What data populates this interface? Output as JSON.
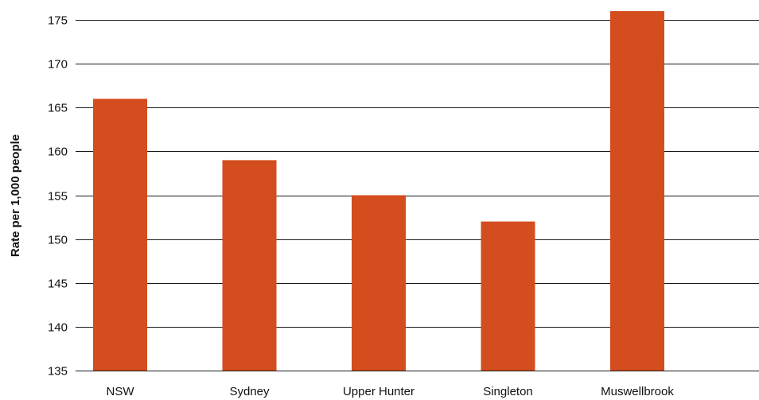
{
  "chart_data": {
    "type": "bar",
    "categories": [
      "NSW",
      "Sydney",
      "Upper Hunter",
      "Singleton",
      "Muswellbrook"
    ],
    "values": [
      166,
      159,
      155,
      152,
      176
    ],
    "ylabel": "Rate per 1,000 people",
    "xlabel": "",
    "title": "",
    "ylim": [
      135,
      175
    ],
    "yticks": [
      135,
      140,
      145,
      150,
      155,
      160,
      165,
      170,
      175
    ],
    "grid": true,
    "legend": "none",
    "bar_color": "#d44d1e"
  }
}
